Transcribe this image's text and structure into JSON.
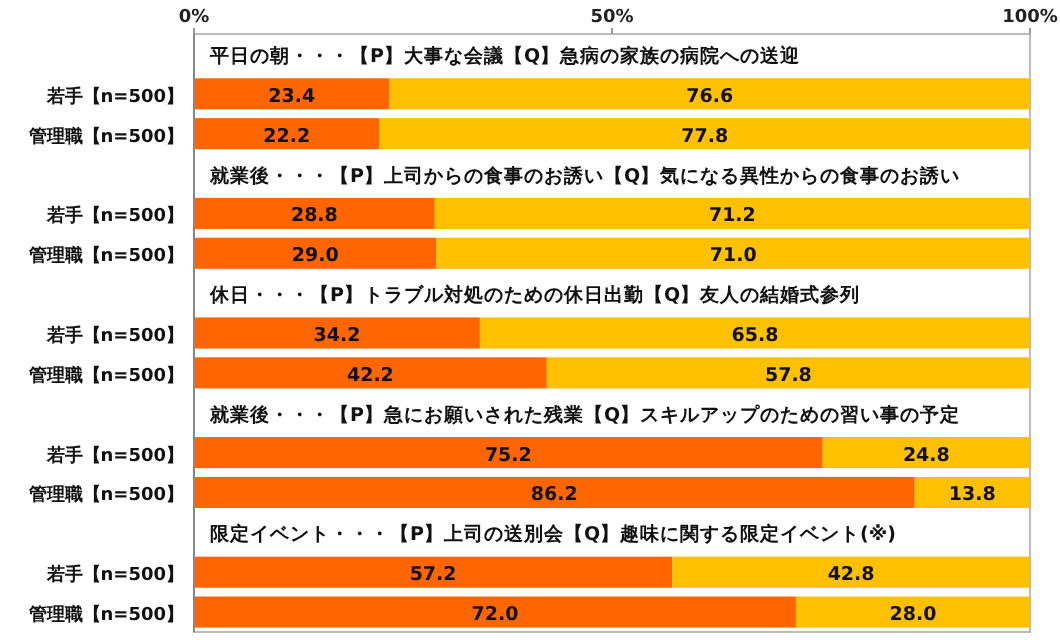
{
  "chart_data": {
    "type": "bar",
    "orientation": "horizontal",
    "stacked": true,
    "categories": [
      "若手【n=500】",
      "管理職【n=500】",
      "若手【n=500】",
      "管理職【n=500】",
      "若手【n=500】",
      "管理職【n=500】",
      "若手【n=500】",
      "管理職【n=500】",
      "若手【n=500】",
      "管理職【n=500】"
    ],
    "annotations": [
      "平日の朝・・・【P】大事な会議【Q】急病の家族の病院への送迎",
      "就業後・・・【P】上司からの食事のお誘い【Q】気になる異性からの食事のお誘い",
      "休日・・・【P】トラブル対処のための休日出勤【Q】友人の結婚式参列",
      "就業後・・・【P】急にお願いされた残業【Q】スキルアップのための習い事の予定",
      "限定イベント・・・【P】上司の送別会【Q】趣味に関する限定イベント(※)"
    ],
    "series": [
      {
        "color": "#ff6600",
        "values": [
          23.4,
          22.2,
          28.8,
          29.0,
          34.2,
          42.2,
          75.2,
          86.2,
          57.2,
          72.0
        ],
        "value_labels": [
          "23.4",
          "22.2",
          "28.8",
          "29.0",
          "34.2",
          "42.2",
          "75.2",
          "86.2",
          "57.2",
          "72.0"
        ]
      },
      {
        "color": "#ffc000",
        "values": [
          76.6,
          77.8,
          71.2,
          71.0,
          65.8,
          57.8,
          24.8,
          13.8,
          42.8,
          28.0
        ],
        "value_labels": [
          "76.6",
          "77.8",
          "71.2",
          "71.0",
          "65.8",
          "57.8",
          "24.8",
          "13.8",
          "42.8",
          "28.0"
        ]
      }
    ],
    "xlim": [
      0,
      100
    ],
    "xticks": [
      {
        "value": 0,
        "label": "0%"
      },
      {
        "value": 50,
        "label": "50%"
      },
      {
        "value": 100,
        "label": "100%"
      }
    ],
    "grid": false
  }
}
